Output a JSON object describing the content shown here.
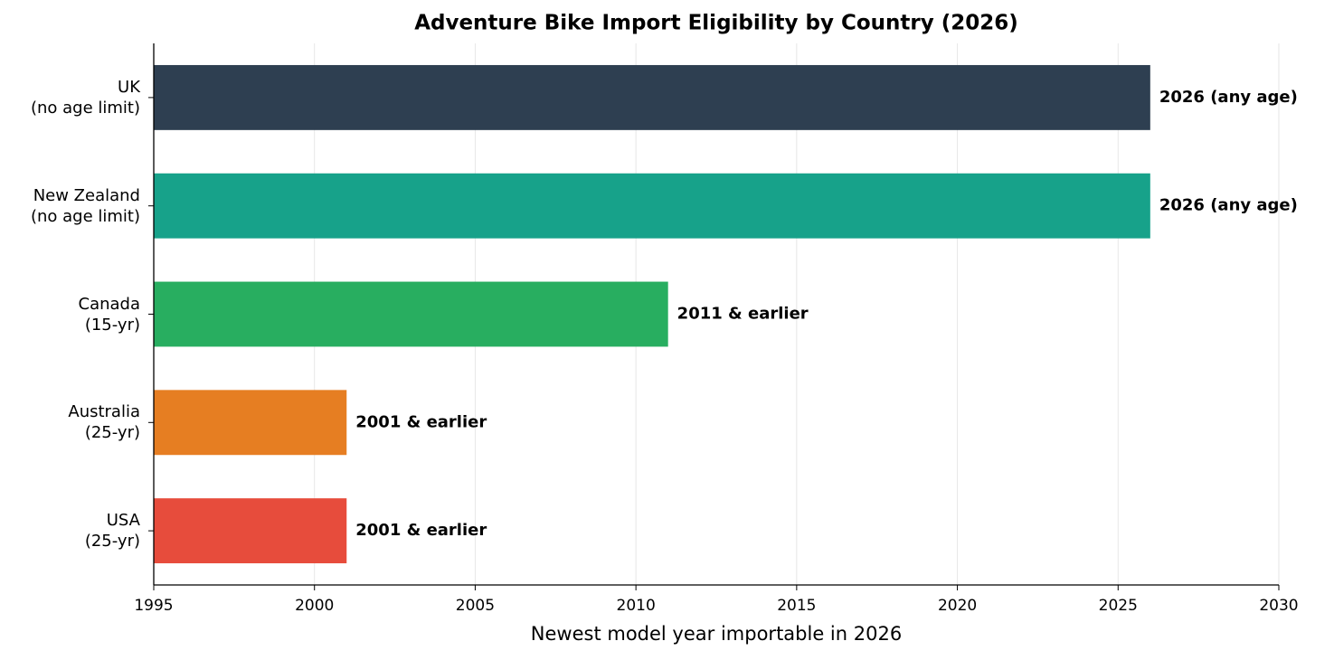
{
  "chart_data": {
    "type": "barh",
    "title": "Adventure Bike Import Eligibility by Country (2026)",
    "xlabel": "Newest model year importable in 2026",
    "categories": [
      "UK\n(no age limit)",
      "New Zealand\n(no age limit)",
      "Canada\n(15-yr)",
      "Australia\n(25-yr)",
      "USA\n(25-yr)"
    ],
    "values": [
      2026,
      2026,
      2011,
      2001,
      2001
    ],
    "value_labels": [
      "2026 (any age)",
      "2026 (any age)",
      "2011 & earlier",
      "2001 & earlier",
      "2001 & earlier"
    ],
    "colors": [
      "#2e3f51",
      "#17a28a",
      "#28ae60",
      "#e67e22",
      "#e74c3c"
    ],
    "xlim": [
      1995,
      2030
    ],
    "xticks": [
      1995,
      2000,
      2005,
      2010,
      2015,
      2020,
      2025,
      2030
    ],
    "grid": true
  }
}
